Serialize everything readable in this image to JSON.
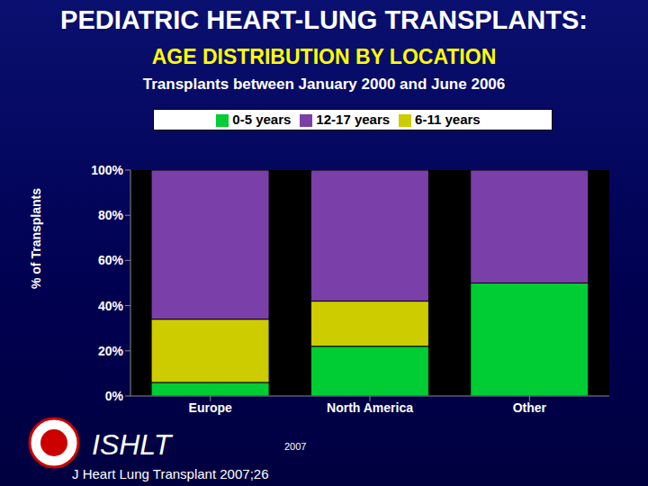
{
  "chart_data": {
    "type": "bar",
    "title": "PEDIATRIC HEART-LUNG TRANSPLANTS:",
    "subtitle": "AGE DISTRIBUTION BY LOCATION",
    "annotations": [
      "Transplants between January 2000 and June 2006",
      "ISHLT",
      "2007",
      "J Heart Lung Transplant 2007;26"
    ],
    "y_label": "% of Transplants",
    "categories": [
      "Europe",
      "North America",
      "Other"
    ],
    "series": [
      {
        "name": "0-5 years",
        "color": "#00cc33",
        "values": [
          6,
          22,
          50
        ]
      },
      {
        "name": "6-11 years",
        "color": "#cccc00",
        "values": [
          28,
          20,
          0
        ]
      },
      {
        "name": "12-17 years",
        "color": "#7a3fa8",
        "values": [
          66,
          58,
          50
        ]
      }
    ],
    "stacked": true,
    "ylim": [
      0,
      100
    ],
    "yticks": [
      {
        "value": 0,
        "label": "0%"
      },
      {
        "value": 20,
        "label": "20%"
      },
      {
        "value": 40,
        "label": "40%"
      },
      {
        "value": 60,
        "label": "60%"
      },
      {
        "value": 80,
        "label": "80%"
      },
      {
        "value": 100,
        "label": "100%"
      }
    ],
    "grid": false,
    "legend": "top"
  }
}
